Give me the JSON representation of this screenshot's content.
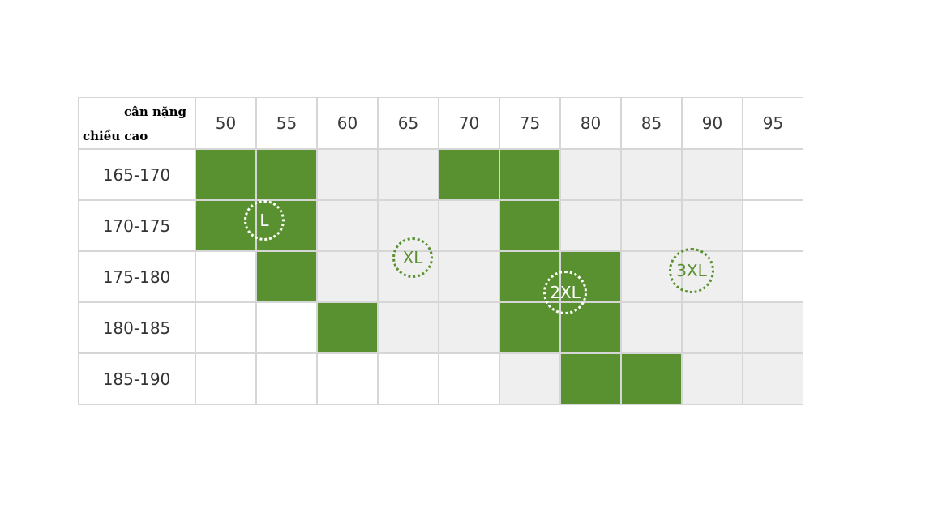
{
  "corner": {
    "weight_label": "cân nặng",
    "height_label": "chiều cao"
  },
  "weights": [
    "50",
    "55",
    "60",
    "65",
    "70",
    "75",
    "80",
    "85",
    "90",
    "95"
  ],
  "heights": [
    "165-170",
    "170-175",
    "175-180",
    "180-185",
    "185-190"
  ],
  "cells": [
    [
      "green",
      "green",
      "grey",
      "grey",
      "green",
      "green",
      "grey",
      "grey",
      "grey",
      "white"
    ],
    [
      "green",
      "green",
      "grey",
      "grey",
      "grey",
      "green",
      "grey",
      "grey",
      "grey",
      "white"
    ],
    [
      "white",
      "green",
      "grey",
      "grey",
      "grey",
      "green",
      "green",
      "grey",
      "grey",
      "white"
    ],
    [
      "white",
      "white",
      "green",
      "grey",
      "grey",
      "green",
      "green",
      "grey",
      "grey",
      "grey"
    ],
    [
      "white",
      "white",
      "white",
      "white",
      "white",
      "grey",
      "green",
      "green",
      "grey",
      "grey"
    ]
  ],
  "size_zones": [
    {
      "label": "L",
      "style": "white"
    },
    {
      "label": "XL",
      "style": "green"
    },
    {
      "label": "2XL",
      "style": "white"
    },
    {
      "label": "3XL",
      "style": "green"
    }
  ],
  "colors": {
    "green": "#5a9130",
    "grey": "#efefef",
    "white": "#ffffff",
    "grid_line": "#d6d6d6"
  }
}
